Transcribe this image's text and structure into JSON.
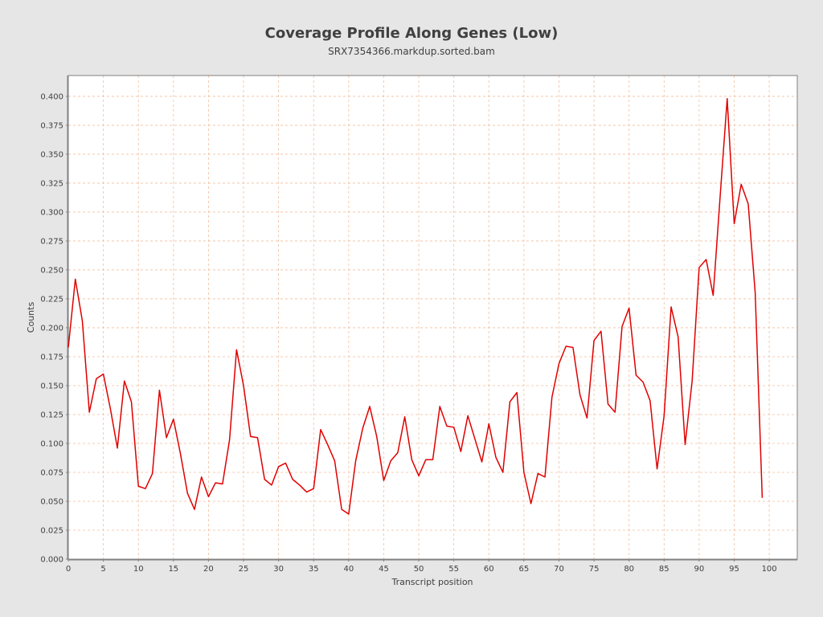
{
  "chart_data": {
    "type": "line",
    "title": "Coverage Profile Along Genes (Low)",
    "subtitle": "SRX7354366.markdup.sorted.bam",
    "xlabel": "Transcript position",
    "ylabel": "Counts",
    "xlim": [
      0,
      104
    ],
    "ylim": [
      0,
      0.418
    ],
    "xticks": [
      0,
      5,
      10,
      15,
      20,
      25,
      30,
      35,
      40,
      45,
      50,
      55,
      60,
      65,
      70,
      75,
      80,
      85,
      90,
      95,
      100
    ],
    "yticks": [
      0.0,
      0.025,
      0.05,
      0.075,
      0.1,
      0.125,
      0.15,
      0.175,
      0.2,
      0.225,
      0.25,
      0.275,
      0.3,
      0.325,
      0.35,
      0.375,
      0.4
    ],
    "ytick_labels": [
      "0.000",
      "0.025",
      "0.050",
      "0.075",
      "0.100",
      "0.125",
      "0.150",
      "0.175",
      "0.200",
      "0.225",
      "0.250",
      "0.275",
      "0.300",
      "0.325",
      "0.350",
      "0.375",
      "0.400"
    ],
    "grid": true,
    "colors": {
      "line": "#e00000",
      "grid": "#f2bf9e",
      "plot_bg": "#ffffff",
      "page_bg": "#e6e6e6"
    },
    "series": [
      {
        "x": [
          0,
          1,
          2,
          3,
          4,
          5,
          6,
          7,
          8,
          9,
          10,
          11,
          12,
          13,
          14,
          15,
          16,
          17,
          18,
          19,
          20,
          21,
          22,
          23,
          24,
          25,
          26,
          27,
          28,
          29,
          30,
          31,
          32,
          33,
          34,
          35,
          36,
          37,
          38,
          39,
          40,
          41,
          42,
          43,
          44,
          45,
          46,
          47,
          48,
          49,
          50,
          51,
          52,
          53,
          54,
          55,
          56,
          57,
          58,
          59,
          60,
          61,
          62,
          63,
          64,
          65,
          66,
          67,
          68,
          69,
          70,
          71,
          72,
          73,
          74,
          75,
          76,
          77,
          78,
          79,
          80,
          81,
          82,
          83,
          84,
          85,
          86,
          87,
          88,
          89,
          90,
          91,
          92,
          93,
          94,
          95,
          96,
          97,
          98,
          99
        ],
        "y": [
          0.183,
          0.242,
          0.206,
          0.127,
          0.156,
          0.16,
          0.13,
          0.096,
          0.154,
          0.136,
          0.063,
          0.061,
          0.074,
          0.146,
          0.105,
          0.121,
          0.091,
          0.057,
          0.043,
          0.071,
          0.054,
          0.066,
          0.065,
          0.103,
          0.181,
          0.15,
          0.106,
          0.105,
          0.069,
          0.064,
          0.08,
          0.083,
          0.069,
          0.064,
          0.058,
          0.061,
          0.112,
          0.099,
          0.085,
          0.043,
          0.039,
          0.085,
          0.113,
          0.132,
          0.106,
          0.068,
          0.085,
          0.092,
          0.123,
          0.086,
          0.072,
          0.086,
          0.086,
          0.132,
          0.115,
          0.114,
          0.093,
          0.124,
          0.104,
          0.084,
          0.117,
          0.088,
          0.075,
          0.136,
          0.144,
          0.075,
          0.048,
          0.074,
          0.071,
          0.14,
          0.169,
          0.184,
          0.183,
          0.142,
          0.122,
          0.189,
          0.197,
          0.134,
          0.127,
          0.201,
          0.217,
          0.159,
          0.153,
          0.137,
          0.078,
          0.124,
          0.218,
          0.192,
          0.099,
          0.154,
          0.252,
          0.259,
          0.228,
          0.314,
          0.398,
          0.29,
          0.324,
          0.307,
          0.23,
          0.053
        ]
      }
    ]
  }
}
